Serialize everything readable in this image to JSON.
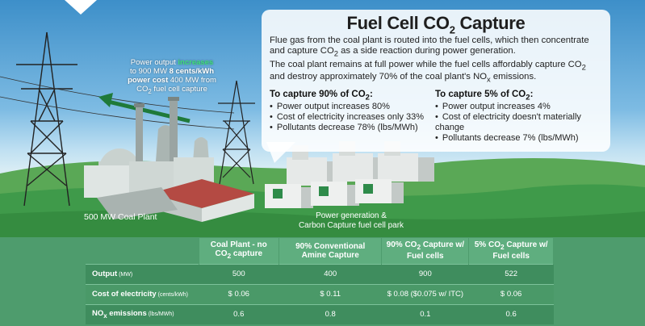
{
  "callout": {
    "title_main": "Fuel Cell CO",
    "title_sub": "2",
    "title_end": " Capture",
    "para1_a": "Flue gas from the coal plant is routed into the fuel cells, which then concentrate and capture CO",
    "para1_sub": "2",
    "para1_b": " as a side reaction during power generation.",
    "para2_a": "The coal plant remains at full power while the fuel cells affordably capture CO",
    "para2_sub": "2",
    "para2_b": " and destroy approximately 70% of the coal plant's NO",
    "para2_sub2": "x",
    "para2_c": " emissions.",
    "col90": {
      "heading_a": "To capture 90% of CO",
      "heading_sub": "2",
      "heading_end": ":",
      "items": [
        "Power output increases 80%",
        "Cost of electricity increases only 33%",
        "Pollutants decrease 78% (lbs/MWh)"
      ]
    },
    "col5": {
      "heading_a": "To capture 5% of CO",
      "heading_sub": "2",
      "heading_end": ":",
      "items": [
        "Power output increases 4%",
        "Cost of electricity doesn't materially change",
        "Pollutants decrease 7% (lbs/MWh)"
      ]
    }
  },
  "power_note": {
    "line1_a": "Power output ",
    "line1_hl": "increases",
    "line2_a": "to 900 MW ",
    "line2_b": "8 cents/kWh",
    "line3_b": "power cost",
    "line3_a": " 400 MW from",
    "line4_a": "CO",
    "line4_sub": "2",
    "line4_b": " fuel cell capture"
  },
  "labels": {
    "plant": "500 MW Coal Plant",
    "park_line1": "Power generation &",
    "park_line2": "Carbon Capture fuel cell park"
  },
  "table": {
    "headers": [
      {
        "a": "Coal Plant - no CO",
        "sub": "2",
        "b": " capture"
      },
      {
        "a": "90% Conventional Amine Capture",
        "sub": "",
        "b": ""
      },
      {
        "a": "90% CO",
        "sub": "2",
        "b": " Capture w/ Fuel cells"
      },
      {
        "a": "5% CO",
        "sub": "2",
        "b": " Capture w/ Fuel cells"
      }
    ],
    "rows": [
      {
        "label": "Output",
        "unit": " (MW)",
        "label_sub": "",
        "values": [
          "500",
          "400",
          "900",
          "522"
        ]
      },
      {
        "label": "Cost of electricity",
        "unit": " (cents/kWh)",
        "label_sub": "",
        "values": [
          "$ 0.06",
          "$ 0.11",
          "$ 0.08 ($0.075 w/ ITC)",
          "$ 0.06"
        ]
      },
      {
        "label": "NO",
        "label_sub": "x",
        "label_end": " emissions",
        "unit": " (lbs/MWh)",
        "values": [
          "0.6",
          "0.8",
          "0.1",
          "0.6"
        ]
      }
    ]
  },
  "colors": {
    "sky_top": "#3d8fc9",
    "grass": "#3f9a4a",
    "table_bg": "#4e9c6d",
    "header_bg": "#5fae7f",
    "highlight_green": "#3fe07a"
  }
}
